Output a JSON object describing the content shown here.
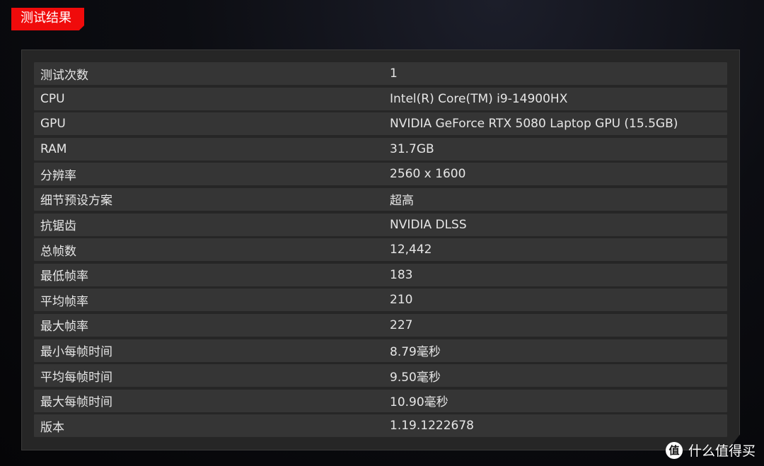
{
  "header": {
    "title": "测试结果"
  },
  "rows": [
    {
      "label": "测试次数",
      "value": "1"
    },
    {
      "label": "CPU",
      "value": "Intel(R) Core(TM) i9-14900HX"
    },
    {
      "label": "GPU",
      "value": "NVIDIA GeForce RTX 5080 Laptop GPU (15.5GB)"
    },
    {
      "label": "RAM",
      "value": "31.7GB"
    },
    {
      "label": "分辨率",
      "value": "2560 x 1600"
    },
    {
      "label": "细节预设方案",
      "value": "超高"
    },
    {
      "label": "抗锯齿",
      "value": "NVIDIA DLSS"
    },
    {
      "label": "总帧数",
      "value": "12,442"
    },
    {
      "label": "最低帧率",
      "value": "183"
    },
    {
      "label": "平均帧率",
      "value": "210"
    },
    {
      "label": "最大帧率",
      "value": "227"
    },
    {
      "label": "最小每帧时间",
      "value": "8.79毫秒"
    },
    {
      "label": "平均每帧时间",
      "value": "9.50毫秒"
    },
    {
      "label": "最大每帧时间",
      "value": "10.90毫秒"
    },
    {
      "label": "版本",
      "value": "1.19.1222678"
    }
  ],
  "watermark": {
    "icon_char": "值",
    "text": "什么值得买"
  },
  "colors": {
    "accent": "#f00b0b",
    "panel": "#262626",
    "row": "#353535"
  }
}
